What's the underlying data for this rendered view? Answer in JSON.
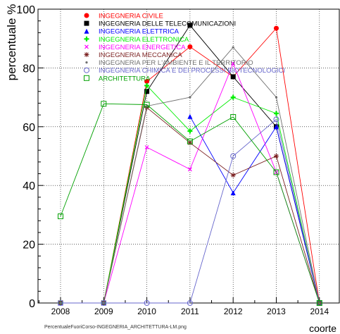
{
  "chart_data": {
    "type": "line",
    "ylabel": "percentuale %",
    "xlabel": "coorte",
    "caption": "PercentualeFuoriCorso-INGEGNERIA_ARCHITETTURA-LM.png",
    "x": [
      "2008",
      "2009",
      "2010",
      "2011",
      "2012",
      "2013",
      "2014"
    ],
    "ylim": [
      0,
      100
    ],
    "yticks": [
      "0",
      "20",
      "40",
      "60",
      "80",
      "100"
    ],
    "grid": true,
    "legend_position": "top-left",
    "series": [
      {
        "name": "INGEGNERIA CIVILE",
        "color": "#ff0000",
        "marker": "circle",
        "values": [
          0,
          0,
          75.4,
          87.2,
          77.0,
          93.5,
          0
        ]
      },
      {
        "name": "INGEGNERIA DELLE TELECOMUNICAZIONI",
        "color": "#000000",
        "marker": "square",
        "values": [
          0,
          0,
          72.0,
          94.5,
          77.0,
          60.0,
          0
        ]
      },
      {
        "name": "INGEGNERIA ELETTRICA",
        "color": "#0000ff",
        "marker": "triangle",
        "values": [
          0,
          0,
          null,
          63.5,
          37.5,
          60.0,
          0
        ]
      },
      {
        "name": "INGEGNERIA ELETTRONICA",
        "color": "#00ee00",
        "marker": "plus",
        "values": [
          0,
          0,
          74.0,
          58.5,
          70.0,
          64.5,
          0
        ]
      },
      {
        "name": "INGEGNERIA ENERGETICA",
        "color": "#ff00ff",
        "marker": "x",
        "values": [
          0,
          0,
          53.0,
          45.5,
          81.5,
          44.5,
          0
        ]
      },
      {
        "name": "INGEGNERIA MECCANICA",
        "color": "#7a1f1f",
        "marker": "star",
        "values": [
          0,
          0,
          66.5,
          54.5,
          43.5,
          50.0,
          0
        ]
      },
      {
        "name": "INGEGNERIA PER L'AMBIENTE E IL TERRITORIO",
        "color": "#707070",
        "marker": "dot",
        "values": [
          0,
          0,
          67.0,
          70.0,
          87.0,
          70.0,
          0
        ]
      },
      {
        "name": "INGEGNERIA CHIMICA E DEI PROCESSI BIOTECNOLOGICI",
        "color": "#6666cc",
        "marker": "open-circle",
        "values": [
          0,
          0,
          0,
          0,
          50.0,
          62.5,
          0
        ]
      },
      {
        "name": "ARCHITETTURA",
        "color": "#00a000",
        "marker": "open-square",
        "values": [
          29.5,
          67.8,
          67.5,
          55.0,
          63.3,
          44.5,
          0
        ]
      }
    ]
  }
}
